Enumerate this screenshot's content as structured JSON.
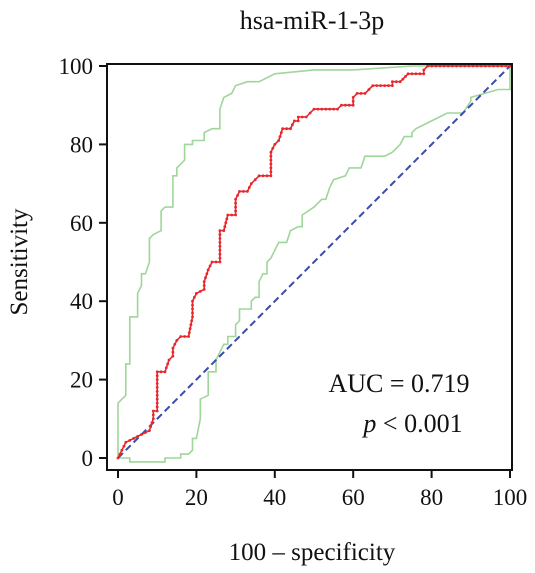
{
  "chart_data": {
    "type": "line",
    "title": "hsa-miR-1-3p",
    "xlabel": "100 – specificity",
    "ylabel": "Sensitivity",
    "xlim": [
      0,
      100
    ],
    "ylim": [
      0,
      100
    ],
    "x_ticks": [
      "0",
      "20",
      "40",
      "60",
      "80",
      "100"
    ],
    "y_ticks": [
      "0",
      "20",
      "40",
      "60",
      "80",
      "100"
    ],
    "grid": false,
    "legend": "none",
    "annotations": {
      "auc": "AUC = 0.719",
      "p_symbol": "p",
      "p_rest": " < 0.001"
    },
    "colors": {
      "roc": "#e8262c",
      "ci": "#9fd69a",
      "reference": "#3a4aa6"
    },
    "series": [
      {
        "role": "roc",
        "points": [
          [
            0,
            0
          ],
          [
            1,
            2
          ],
          [
            2,
            4
          ],
          [
            4,
            5
          ],
          [
            6,
            6
          ],
          [
            8,
            7
          ],
          [
            9,
            10
          ],
          [
            9,
            12
          ],
          [
            10,
            12
          ],
          [
            10,
            19
          ],
          [
            10,
            22
          ],
          [
            12,
            22
          ],
          [
            13,
            25
          ],
          [
            14,
            26
          ],
          [
            14,
            28
          ],
          [
            15,
            30
          ],
          [
            16,
            31
          ],
          [
            18,
            31
          ],
          [
            19,
            36
          ],
          [
            19,
            40
          ],
          [
            20,
            42
          ],
          [
            22,
            43
          ],
          [
            22,
            45
          ],
          [
            23,
            48
          ],
          [
            24,
            50
          ],
          [
            26,
            50
          ],
          [
            26,
            55
          ],
          [
            26,
            58
          ],
          [
            27,
            58
          ],
          [
            28,
            62
          ],
          [
            30,
            62
          ],
          [
            30,
            66
          ],
          [
            31,
            68
          ],
          [
            33,
            68
          ],
          [
            34,
            70
          ],
          [
            35,
            71
          ],
          [
            36,
            72
          ],
          [
            39,
            72
          ],
          [
            39,
            78
          ],
          [
            40,
            80
          ],
          [
            41,
            81
          ],
          [
            42,
            84
          ],
          [
            44,
            84
          ],
          [
            45,
            86
          ],
          [
            46,
            86
          ],
          [
            46,
            87
          ],
          [
            48,
            87
          ],
          [
            49,
            88
          ],
          [
            50,
            89
          ],
          [
            56,
            89
          ],
          [
            57,
            90
          ],
          [
            60,
            90
          ],
          [
            60,
            92
          ],
          [
            61,
            93
          ],
          [
            63,
            93
          ],
          [
            64,
            94
          ],
          [
            65,
            95
          ],
          [
            70,
            95
          ],
          [
            70,
            96
          ],
          [
            72,
            96
          ],
          [
            74,
            98
          ],
          [
            78,
            98
          ],
          [
            78,
            99
          ],
          [
            79,
            100
          ],
          [
            100,
            100
          ]
        ]
      },
      {
        "role": "ci-upper",
        "points": [
          [
            0,
            0
          ],
          [
            0,
            14
          ],
          [
            2,
            16
          ],
          [
            2,
            24
          ],
          [
            3,
            24
          ],
          [
            3,
            36
          ],
          [
            5,
            36
          ],
          [
            5,
            42
          ],
          [
            6,
            44
          ],
          [
            6,
            47
          ],
          [
            7,
            47
          ],
          [
            8,
            50
          ],
          [
            8,
            56
          ],
          [
            9,
            57
          ],
          [
            11,
            58
          ],
          [
            11,
            63
          ],
          [
            12,
            64
          ],
          [
            14,
            64
          ],
          [
            14,
            72
          ],
          [
            15,
            72
          ],
          [
            15,
            74
          ],
          [
            17,
            76
          ],
          [
            17,
            80
          ],
          [
            19,
            80
          ],
          [
            19,
            81
          ],
          [
            22,
            81
          ],
          [
            22,
            83
          ],
          [
            24,
            84
          ],
          [
            26,
            84
          ],
          [
            26,
            89
          ],
          [
            27,
            92
          ],
          [
            29,
            93
          ],
          [
            30,
            95
          ],
          [
            33,
            96
          ],
          [
            36,
            96
          ],
          [
            40,
            98
          ],
          [
            50,
            99
          ],
          [
            60,
            99
          ],
          [
            75,
            100
          ],
          [
            100,
            100
          ]
        ]
      },
      {
        "role": "ci-lower",
        "points": [
          [
            0,
            0
          ],
          [
            3,
            0
          ],
          [
            3,
            -1
          ],
          [
            12,
            -1
          ],
          [
            12,
            0
          ],
          [
            16,
            0
          ],
          [
            16,
            1
          ],
          [
            18,
            1
          ],
          [
            19,
            2
          ],
          [
            19,
            5
          ],
          [
            20,
            5
          ],
          [
            21,
            10
          ],
          [
            21,
            15
          ],
          [
            23,
            16
          ],
          [
            23,
            22
          ],
          [
            25,
            22
          ],
          [
            25,
            25
          ],
          [
            27,
            29
          ],
          [
            28,
            29
          ],
          [
            28,
            31
          ],
          [
            30,
            31
          ],
          [
            30,
            34
          ],
          [
            31,
            35
          ],
          [
            31,
            38
          ],
          [
            34,
            38
          ],
          [
            34,
            40
          ],
          [
            35,
            41
          ],
          [
            36,
            41
          ],
          [
            36,
            45
          ],
          [
            37,
            47
          ],
          [
            38,
            47
          ],
          [
            38,
            50
          ],
          [
            39,
            51
          ],
          [
            41,
            55
          ],
          [
            43,
            55
          ],
          [
            44,
            58
          ],
          [
            46,
            59
          ],
          [
            47,
            59
          ],
          [
            47,
            62
          ],
          [
            50,
            64
          ],
          [
            52,
            66
          ],
          [
            53,
            66
          ],
          [
            54,
            69
          ],
          [
            55,
            71
          ],
          [
            58,
            72
          ],
          [
            59,
            74
          ],
          [
            62,
            74
          ],
          [
            63,
            77
          ],
          [
            68,
            77
          ],
          [
            70,
            78
          ],
          [
            72,
            80
          ],
          [
            73,
            82
          ],
          [
            75,
            82
          ],
          [
            75,
            83
          ],
          [
            76,
            84
          ],
          [
            80,
            86
          ],
          [
            82,
            87
          ],
          [
            84,
            88
          ],
          [
            88,
            88
          ],
          [
            90,
            91
          ],
          [
            90,
            92
          ],
          [
            97,
            94
          ],
          [
            100,
            94
          ],
          [
            100,
            100
          ]
        ]
      },
      {
        "role": "reference",
        "points": [
          [
            0,
            0
          ],
          [
            100,
            100
          ]
        ]
      }
    ]
  }
}
